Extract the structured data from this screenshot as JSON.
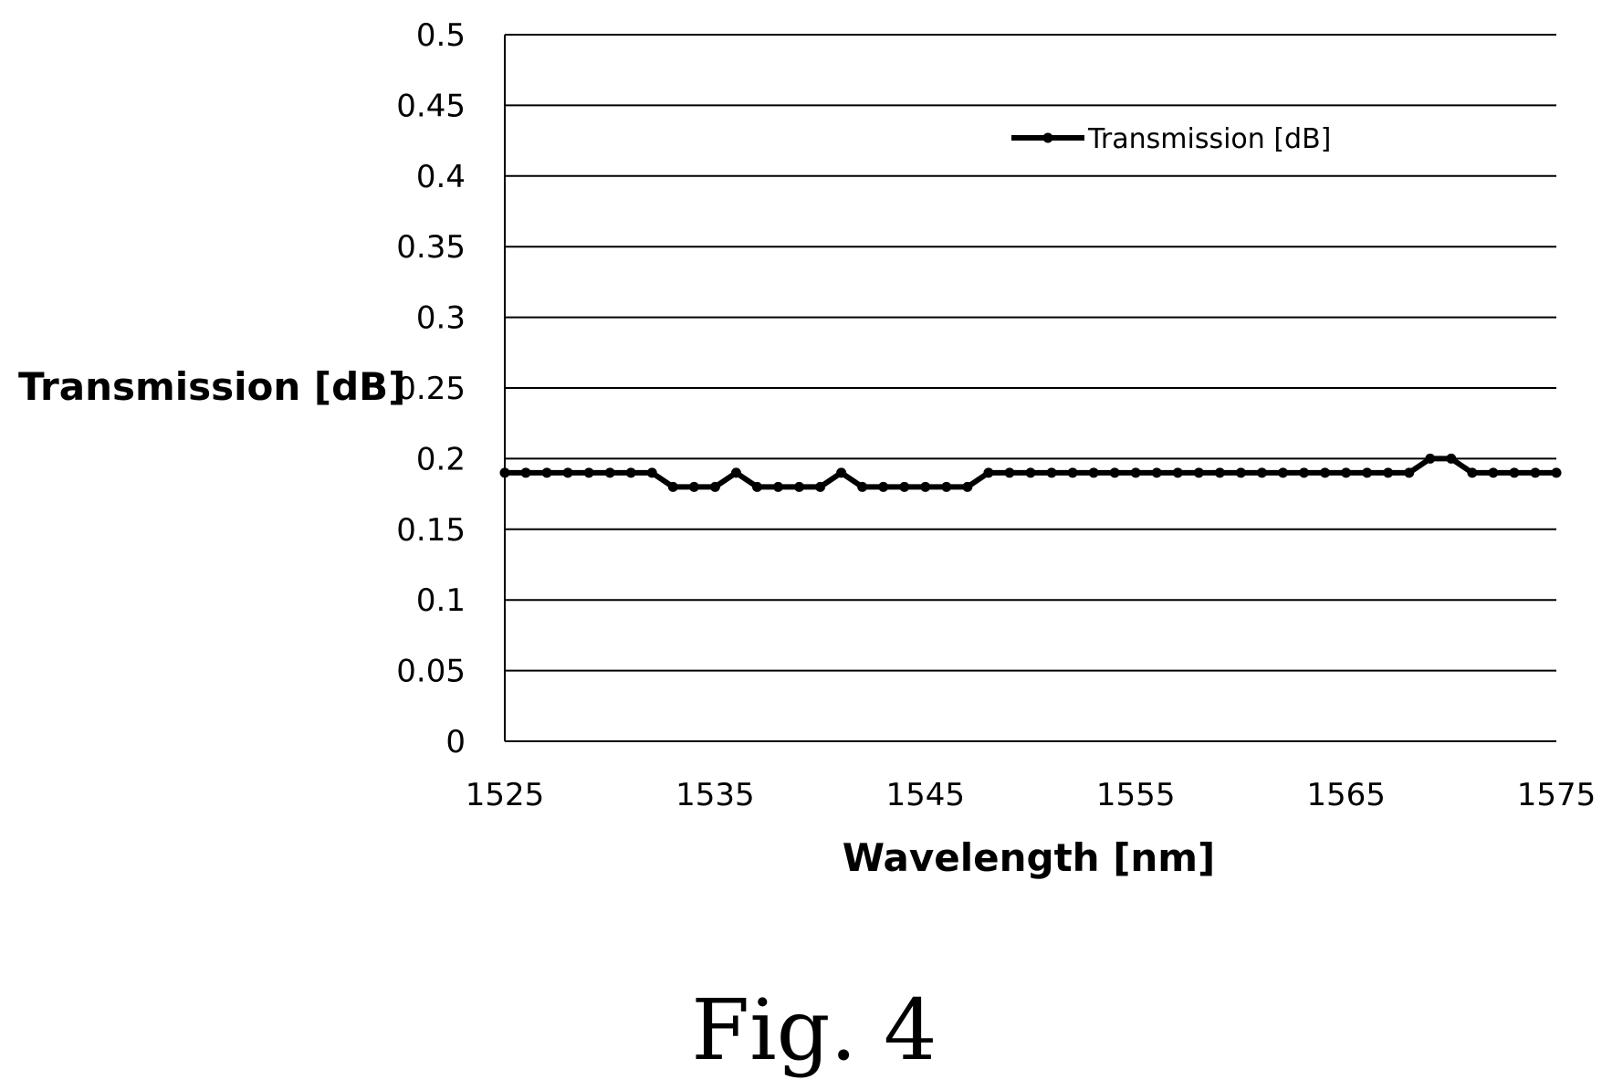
{
  "caption": "Fig. 4",
  "chart_data": {
    "type": "line",
    "xlabel": "Wavelength [nm]",
    "ylabel": "Transmission [dB]",
    "xlim": [
      1525,
      1575
    ],
    "ylim": [
      0,
      0.5
    ],
    "x_ticks": [
      "1525",
      "1535",
      "1545",
      "1555",
      "1565",
      "1575"
    ],
    "y_ticks": [
      "0",
      "0.05",
      "0.1",
      "0.15",
      "0.2",
      "0.25",
      "0.3",
      "0.35",
      "0.4",
      "0.45",
      "0.5"
    ],
    "grid": "horizontal",
    "legend_position": "top-right",
    "colors": {
      "series": "#000000"
    },
    "series": [
      {
        "name": "Transmission [dB]",
        "x": [
          1525,
          1526,
          1527,
          1528,
          1529,
          1530,
          1531,
          1532,
          1533,
          1534,
          1535,
          1536,
          1537,
          1538,
          1539,
          1540,
          1541,
          1542,
          1543,
          1544,
          1545,
          1546,
          1547,
          1548,
          1549,
          1550,
          1551,
          1552,
          1553,
          1554,
          1555,
          1556,
          1557,
          1558,
          1559,
          1560,
          1561,
          1562,
          1563,
          1564,
          1565,
          1566,
          1567,
          1568,
          1569,
          1570,
          1571,
          1572,
          1573,
          1574,
          1575
        ],
        "values": [
          0.19,
          0.19,
          0.19,
          0.19,
          0.19,
          0.19,
          0.19,
          0.19,
          0.18,
          0.18,
          0.18,
          0.19,
          0.18,
          0.18,
          0.18,
          0.18,
          0.19,
          0.18,
          0.18,
          0.18,
          0.18,
          0.18,
          0.18,
          0.19,
          0.19,
          0.19,
          0.19,
          0.19,
          0.19,
          0.19,
          0.19,
          0.19,
          0.19,
          0.19,
          0.19,
          0.19,
          0.19,
          0.19,
          0.19,
          0.19,
          0.19,
          0.19,
          0.19,
          0.19,
          0.2,
          0.2,
          0.19,
          0.19,
          0.19,
          0.19,
          0.19
        ]
      }
    ]
  }
}
